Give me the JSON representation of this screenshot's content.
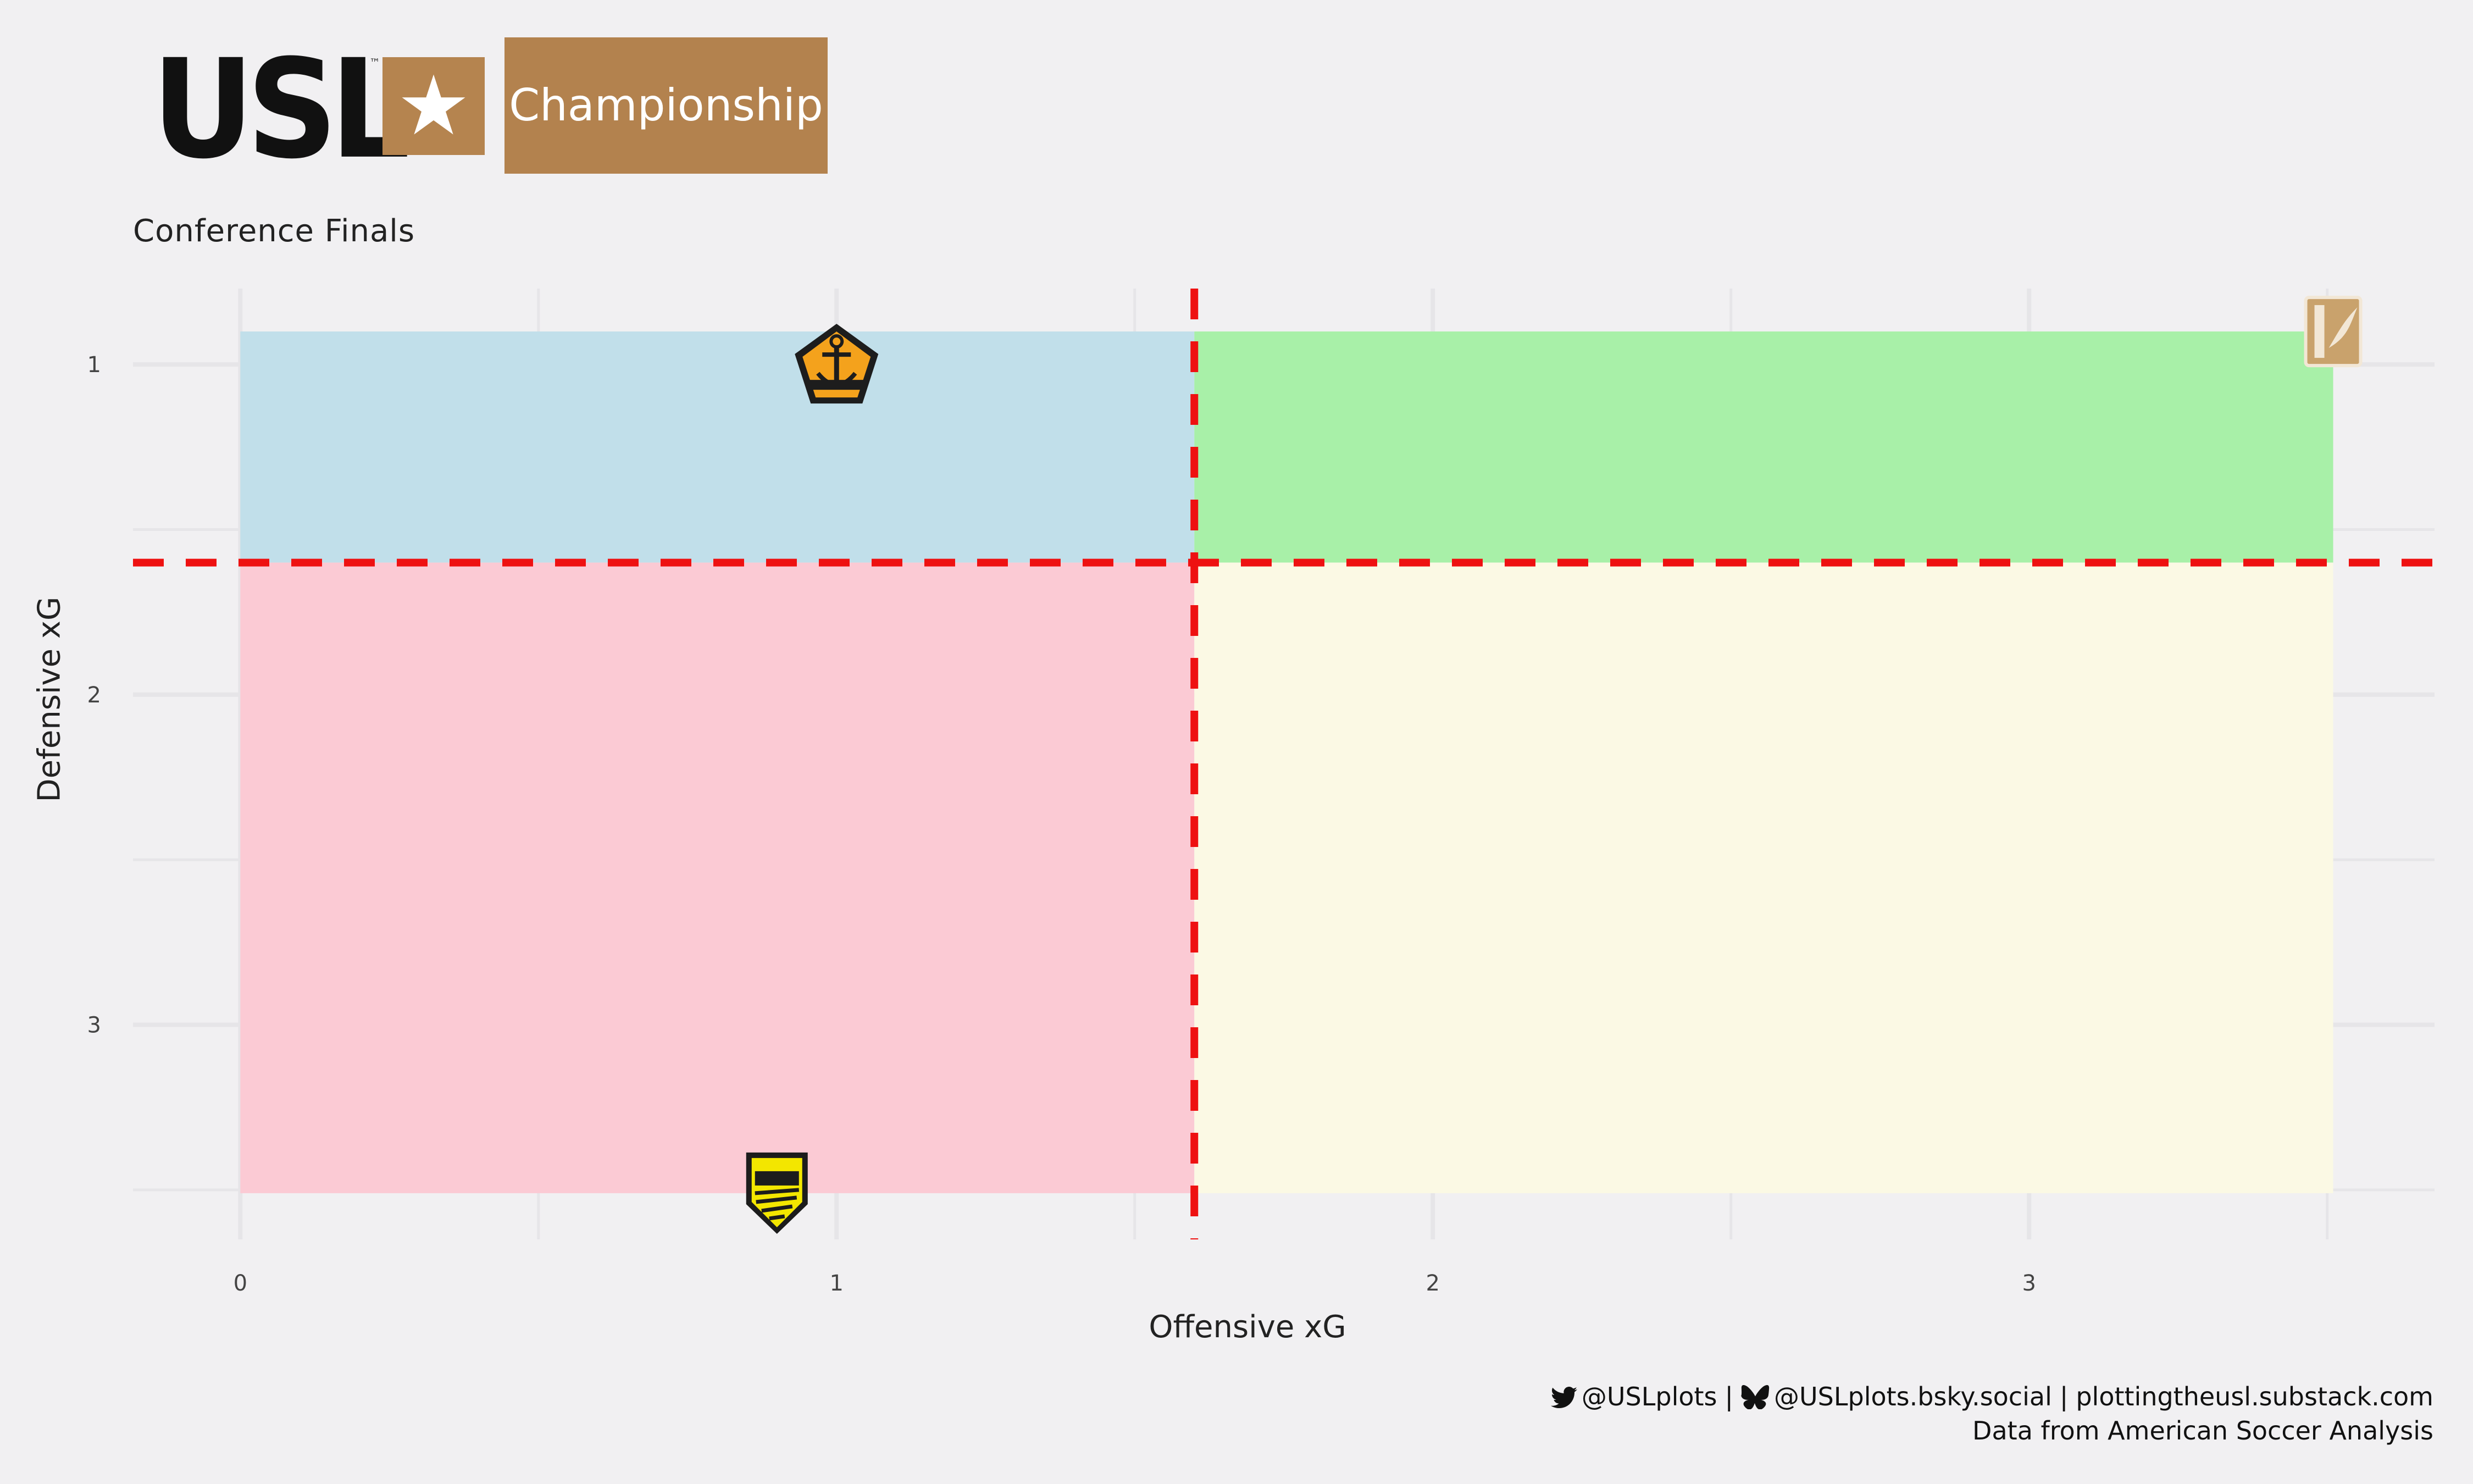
{
  "header": {
    "logo_text": "USL",
    "logo_tm": "™",
    "logo_star": "★",
    "logo_champ": "Championship"
  },
  "subtitle": "Conference Finals",
  "caption": {
    "twitter_icon": "twitter-bird-icon",
    "twitter": "@USLplots",
    "separator": "|",
    "bluesky_icon": "bluesky-butterfly-icon",
    "bluesky": "@USLplots.bsky.social",
    "substack": "plottingtheusl.substack.com",
    "source": "Data from American Soccer Analysis"
  },
  "chart_data": {
    "type": "scatter",
    "xlabel": "Offensive xG",
    "ylabel": "Defensive xG",
    "xlim": [
      -0.18,
      3.68
    ],
    "ylim": [
      3.65,
      0.77
    ],
    "y_reversed": true,
    "x_ticks": [
      0,
      1,
      2,
      3
    ],
    "y_ticks": [
      1,
      2,
      3
    ],
    "grid": true,
    "vline_x": 1.6,
    "hline_y": 1.6,
    "reference_line_color": "#ee1111",
    "quadrants": [
      {
        "x": [
          0,
          1.6
        ],
        "y": [
          0.9,
          1.6
        ],
        "color": "#c1dfea"
      },
      {
        "x": [
          1.6,
          3.51
        ],
        "y": [
          0.9,
          1.6
        ],
        "color": "#a8f0a8"
      },
      {
        "x": [
          0,
          1.6
        ],
        "y": [
          1.6,
          3.51
        ],
        "color": "#fbcad4"
      },
      {
        "x": [
          1.6,
          3.51
        ],
        "y": [
          1.6,
          3.51
        ],
        "color": "#fbf9e4"
      }
    ],
    "points": [
      {
        "x": 1.0,
        "y": 1.01,
        "logo": "rhode-island-fc-logo"
      },
      {
        "x": 3.51,
        "y": 0.9,
        "logo": "tulsa-logo"
      },
      {
        "x": 0.9,
        "y": 3.51,
        "logo": "new-mexico-united-logo"
      }
    ]
  }
}
